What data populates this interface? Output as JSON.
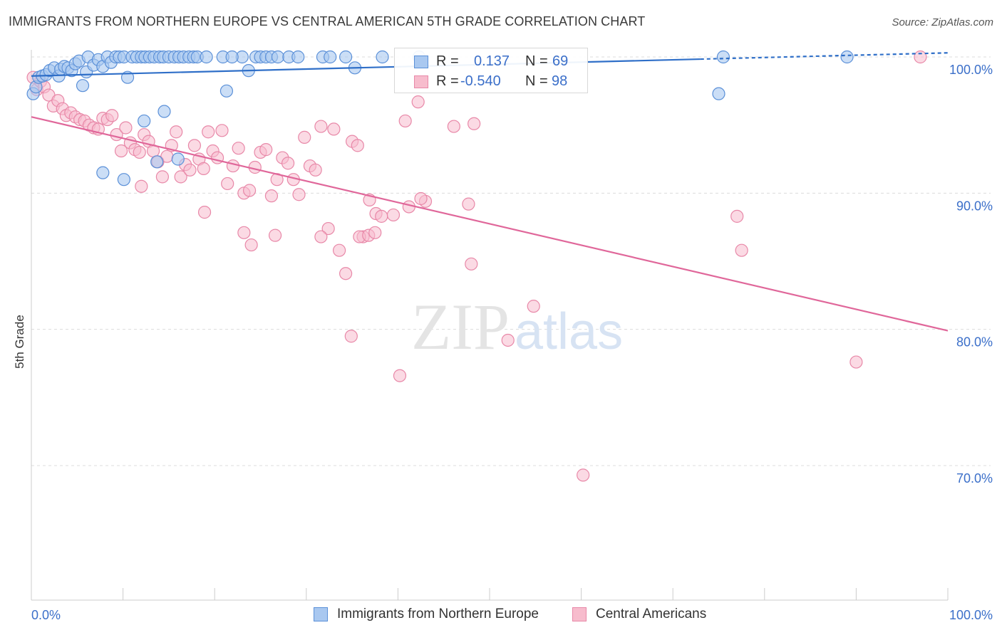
{
  "title": "IMMIGRANTS FROM NORTHERN EUROPE VS CENTRAL AMERICAN 5TH GRADE CORRELATION CHART",
  "source": "Source: ZipAtlas.com",
  "watermark": {
    "zip": "ZIP",
    "atlas": "atlas"
  },
  "legend": {
    "rows": [
      {
        "r_label": "R =",
        "r_value": "0.137",
        "n_label": "N =",
        "n_value": "69"
      },
      {
        "r_label": "R =",
        "r_value": "-0.540",
        "n_label": "N =",
        "n_value": "98"
      }
    ]
  },
  "bottom_legend": {
    "items": [
      {
        "label": "Immigrants from Northern Europe"
      },
      {
        "label": "Central Americans"
      }
    ]
  },
  "colors": {
    "blue_fill": "#a9c8f0",
    "blue_stroke": "#5b90d8",
    "blue_line": "#2f6fc8",
    "pink_fill": "#f7bccd",
    "pink_stroke": "#e888a8",
    "pink_line": "#e0679a",
    "grid": "#dcdcdc",
    "tick_label": "#3b6fc9",
    "axis": "#cccccc"
  },
  "chart_data": {
    "type": "scatter",
    "title": "IMMIGRANTS FROM NORTHERN EUROPE VS CENTRAL AMERICAN 5TH GRADE CORRELATION CHART",
    "xlabel": "",
    "ylabel": "5th Grade",
    "xlim": [
      0,
      100
    ],
    "ylim": [
      61,
      102
    ],
    "x_tick_labels": [
      "0.0%",
      "100.0%"
    ],
    "y_ticks": [
      70,
      80,
      90,
      100
    ],
    "y_tick_labels": [
      "70.0%",
      "80.0%",
      "90.0%",
      "100.0%"
    ],
    "grid": true,
    "legend_position": "top-center",
    "series": [
      {
        "name": "Immigrants from Northern Europe",
        "r": 0.137,
        "n": 69,
        "trend": {
          "x": [
            0,
            100
          ],
          "y": [
            98.6,
            100.3
          ]
        },
        "points": [
          [
            0.2,
            97.3
          ],
          [
            0.5,
            97.8
          ],
          [
            0.8,
            98.5
          ],
          [
            1.2,
            98.6
          ],
          [
            1.6,
            98.7
          ],
          [
            2.0,
            99.0
          ],
          [
            2.5,
            99.2
          ],
          [
            3.0,
            98.6
          ],
          [
            3.2,
            99.1
          ],
          [
            3.6,
            99.3
          ],
          [
            4.0,
            99.2
          ],
          [
            4.4,
            99.0
          ],
          [
            4.8,
            99.5
          ],
          [
            5.2,
            99.7
          ],
          [
            5.6,
            97.9
          ],
          [
            6.0,
            98.9
          ],
          [
            6.2,
            100.0
          ],
          [
            6.8,
            99.4
          ],
          [
            7.3,
            99.8
          ],
          [
            7.8,
            99.3
          ],
          [
            8.3,
            100.0
          ],
          [
            8.7,
            99.6
          ],
          [
            9.2,
            100.0
          ],
          [
            9.6,
            100.0
          ],
          [
            10.1,
            100.0
          ],
          [
            10.5,
            98.5
          ],
          [
            11.0,
            100.0
          ],
          [
            11.5,
            100.0
          ],
          [
            12.0,
            100.0
          ],
          [
            12.4,
            100.0
          ],
          [
            12.9,
            100.0
          ],
          [
            13.4,
            100.0
          ],
          [
            14.0,
            100.0
          ],
          [
            14.4,
            100.0
          ],
          [
            15.0,
            100.0
          ],
          [
            15.6,
            100.0
          ],
          [
            16.1,
            100.0
          ],
          [
            16.6,
            100.0
          ],
          [
            17.2,
            100.0
          ],
          [
            17.7,
            100.0
          ],
          [
            18.1,
            100.0
          ],
          [
            19.1,
            100.0
          ],
          [
            24.5,
            100.0
          ],
          [
            25.0,
            100.0
          ],
          [
            25.6,
            100.0
          ],
          [
            26.2,
            100.0
          ],
          [
            20.9,
            100.0
          ],
          [
            23.0,
            100.0
          ],
          [
            21.9,
            100.0
          ],
          [
            26.9,
            100.0
          ],
          [
            28.1,
            100.0
          ],
          [
            29.1,
            100.0
          ],
          [
            31.8,
            100.0
          ],
          [
            32.6,
            100.0
          ],
          [
            34.3,
            100.0
          ],
          [
            38.3,
            100.0
          ],
          [
            42.3,
            100.0
          ],
          [
            35.3,
            99.2
          ],
          [
            21.3,
            97.5
          ],
          [
            23.7,
            99.0
          ],
          [
            14.5,
            96.0
          ],
          [
            12.3,
            95.3
          ],
          [
            13.7,
            92.3
          ],
          [
            16.0,
            92.5
          ],
          [
            7.8,
            91.5
          ],
          [
            10.1,
            91.0
          ],
          [
            75.0,
            97.3
          ],
          [
            75.5,
            100.0
          ],
          [
            89.0,
            100.0
          ]
        ]
      },
      {
        "name": "Central Americans",
        "r": -0.54,
        "n": 98,
        "trend": {
          "x": [
            0,
            100
          ],
          "y": [
            95.6,
            79.9
          ]
        },
        "points": [
          [
            0.2,
            98.5
          ],
          [
            0.6,
            97.6
          ],
          [
            1.0,
            98.2
          ],
          [
            1.4,
            97.8
          ],
          [
            1.9,
            97.2
          ],
          [
            2.4,
            96.4
          ],
          [
            2.9,
            96.8
          ],
          [
            3.4,
            96.2
          ],
          [
            3.8,
            95.7
          ],
          [
            4.3,
            95.9
          ],
          [
            4.8,
            95.6
          ],
          [
            5.3,
            95.4
          ],
          [
            5.8,
            95.3
          ],
          [
            6.3,
            95.0
          ],
          [
            6.8,
            94.8
          ],
          [
            7.3,
            94.7
          ],
          [
            7.8,
            95.5
          ],
          [
            8.3,
            95.4
          ],
          [
            8.8,
            95.7
          ],
          [
            9.3,
            94.3
          ],
          [
            9.8,
            93.1
          ],
          [
            10.3,
            94.8
          ],
          [
            10.8,
            93.7
          ],
          [
            11.3,
            93.2
          ],
          [
            11.8,
            93.0
          ],
          [
            12.3,
            94.3
          ],
          [
            12.8,
            93.8
          ],
          [
            13.3,
            93.1
          ],
          [
            13.8,
            92.3
          ],
          [
            14.3,
            91.2
          ],
          [
            14.8,
            92.7
          ],
          [
            15.3,
            93.5
          ],
          [
            15.8,
            94.5
          ],
          [
            16.3,
            91.2
          ],
          [
            16.8,
            92.1
          ],
          [
            17.3,
            91.7
          ],
          [
            17.8,
            93.5
          ],
          [
            18.3,
            92.5
          ],
          [
            18.8,
            91.8
          ],
          [
            19.3,
            94.5
          ],
          [
            19.8,
            93.1
          ],
          [
            20.3,
            92.6
          ],
          [
            20.8,
            94.6
          ],
          [
            21.4,
            90.7
          ],
          [
            22.0,
            92.0
          ],
          [
            22.6,
            93.3
          ],
          [
            23.2,
            90.0
          ],
          [
            23.8,
            90.2
          ],
          [
            24.4,
            91.9
          ],
          [
            25.0,
            93.0
          ],
          [
            25.6,
            93.2
          ],
          [
            26.2,
            89.8
          ],
          [
            26.8,
            91.0
          ],
          [
            27.4,
            92.6
          ],
          [
            28.0,
            92.2
          ],
          [
            28.6,
            91.0
          ],
          [
            29.2,
            89.9
          ],
          [
            29.8,
            94.1
          ],
          [
            30.4,
            92.0
          ],
          [
            31.0,
            91.7
          ],
          [
            31.6,
            94.9
          ],
          [
            32.4,
            87.4
          ],
          [
            33.0,
            94.7
          ],
          [
            33.6,
            85.8
          ],
          [
            34.3,
            84.1
          ],
          [
            35.0,
            93.8
          ],
          [
            35.6,
            93.5
          ],
          [
            36.2,
            86.8
          ],
          [
            36.9,
            89.5
          ],
          [
            37.6,
            88.5
          ],
          [
            38.2,
            88.3
          ],
          [
            39.5,
            88.4
          ],
          [
            41.2,
            89.0
          ],
          [
            43.0,
            89.4
          ],
          [
            12.0,
            90.5
          ],
          [
            18.9,
            88.6
          ],
          [
            23.2,
            87.1
          ],
          [
            24.0,
            86.2
          ],
          [
            26.6,
            86.9
          ],
          [
            31.6,
            86.8
          ],
          [
            35.8,
            86.8
          ],
          [
            36.8,
            86.9
          ],
          [
            37.5,
            87.1
          ],
          [
            42.5,
            89.6
          ],
          [
            47.7,
            89.2
          ],
          [
            48.0,
            84.8
          ],
          [
            48.3,
            95.1
          ],
          [
            54.8,
            81.7
          ],
          [
            46.1,
            94.9
          ],
          [
            40.8,
            95.3
          ],
          [
            42.2,
            96.7
          ],
          [
            34.9,
            79.5
          ],
          [
            40.2,
            76.6
          ],
          [
            52.0,
            79.2
          ],
          [
            77.0,
            88.3
          ],
          [
            60.2,
            69.3
          ],
          [
            77.5,
            85.8
          ],
          [
            90.0,
            77.6
          ],
          [
            97.0,
            100.0
          ]
        ]
      }
    ]
  }
}
